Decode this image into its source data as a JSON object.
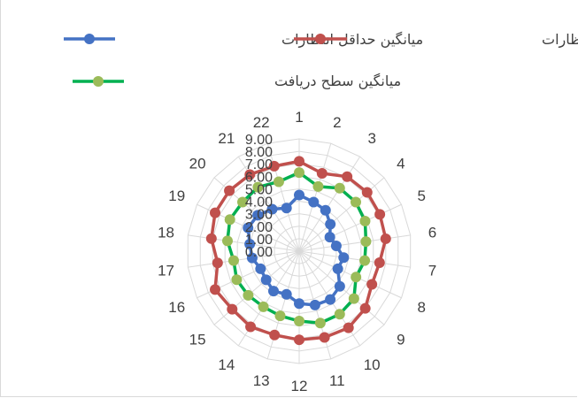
{
  "chart_data": {
    "type": "radar",
    "categories": [
      "1",
      "2",
      "3",
      "4",
      "5",
      "6",
      "7",
      "8",
      "9",
      "10",
      "11",
      "12",
      "13",
      "14",
      "15",
      "16",
      "17",
      "18",
      "19",
      "20",
      "21",
      "22"
    ],
    "category_labels": [
      "1",
      "22",
      "21",
      "20",
      "19",
      "18",
      "17",
      "16",
      "15",
      "14",
      "13",
      "12",
      "11",
      "10",
      "9",
      "8",
      "7",
      "6",
      "5",
      "4",
      "3",
      "2"
    ],
    "r_ticks": [
      "0.00",
      "1.00",
      "2.00",
      "3.00",
      "4.00",
      "5.00",
      "6.00",
      "7.00",
      "8.00",
      "9.00"
    ],
    "rlim": [
      0,
      9
    ],
    "grid": true,
    "legend_position": "top",
    "series": [
      {
        "name": "میانگین حداقل انتظارات",
        "color": "#4472c4",
        "values": [
          4.5,
          3.6,
          4.0,
          4.4,
          4.5,
          4.0,
          3.8,
          3.4,
          3.5,
          3.8,
          3.6,
          4.2,
          4.5,
          4.6,
          4.3,
          3.4,
          3.6,
          3.0,
          2.7,
          3.3,
          3.9,
          4.1
        ]
      },
      {
        "name": "میانگین حداکثر انتظارات",
        "color": "#c0504d",
        "values": [
          7.2,
          7.1,
          7.3,
          7.4,
          7.4,
          7.1,
          6.6,
          7.4,
          7.1,
          7.2,
          7.0,
          7.1,
          7.2,
          7.3,
          7.0,
          6.4,
          6.5,
          7.0,
          7.1,
          7.2,
          7.1,
          6.5
        ]
      },
      {
        "name": "میانگین سطح دریافت",
        "color": "#9bbb59",
        "line_color": "#00b050",
        "values": [
          6.3,
          5.8,
          6.1,
          6.0,
          6.1,
          5.8,
          5.3,
          5.5,
          5.4,
          5.3,
          5.4,
          5.6,
          6.0,
          6.0,
          5.8,
          5.0,
          5.3,
          5.4,
          5.8,
          6.0,
          6.0,
          5.4
        ]
      }
    ]
  }
}
